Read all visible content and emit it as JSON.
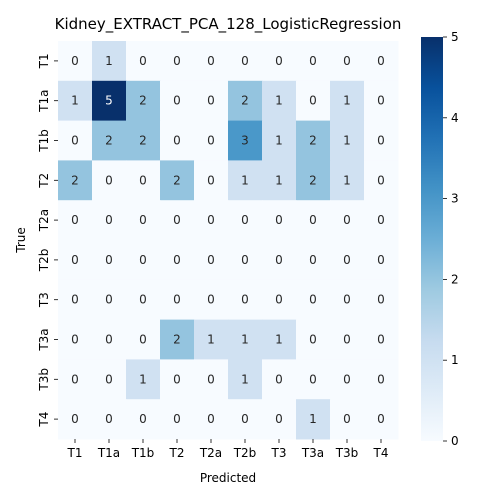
{
  "chart_data": {
    "type": "heatmap",
    "title": "Kidney_EXTRACT_PCA_128_LogisticRegression",
    "xlabel": "Predicted",
    "ylabel": "True",
    "x_categories": [
      "T1",
      "T1a",
      "T1b",
      "T2",
      "T2a",
      "T2b",
      "T3",
      "T3a",
      "T3b",
      "T4"
    ],
    "y_categories": [
      "T1",
      "T1a",
      "T1b",
      "T2",
      "T2a",
      "T2b",
      "T3",
      "T3a",
      "T3b",
      "T4"
    ],
    "values": [
      [
        0,
        1,
        0,
        0,
        0,
        0,
        0,
        0,
        0,
        0
      ],
      [
        1,
        5,
        2,
        0,
        0,
        2,
        1,
        0,
        1,
        0
      ],
      [
        0,
        2,
        2,
        0,
        0,
        3,
        1,
        2,
        1,
        0
      ],
      [
        2,
        0,
        0,
        2,
        0,
        1,
        1,
        2,
        1,
        0
      ],
      [
        0,
        0,
        0,
        0,
        0,
        0,
        0,
        0,
        0,
        0
      ],
      [
        0,
        0,
        0,
        0,
        0,
        0,
        0,
        0,
        0,
        0
      ],
      [
        0,
        0,
        0,
        0,
        0,
        0,
        0,
        0,
        0,
        0
      ],
      [
        0,
        0,
        0,
        2,
        1,
        1,
        1,
        0,
        0,
        0
      ],
      [
        0,
        0,
        1,
        0,
        0,
        1,
        0,
        0,
        0,
        0
      ],
      [
        0,
        0,
        0,
        0,
        0,
        0,
        0,
        1,
        0,
        0
      ]
    ],
    "colorscale": "Blues",
    "vmin": 0,
    "vmax": 5,
    "colorbar_ticks": [
      "0",
      "1",
      "2",
      "3",
      "4",
      "5"
    ]
  }
}
